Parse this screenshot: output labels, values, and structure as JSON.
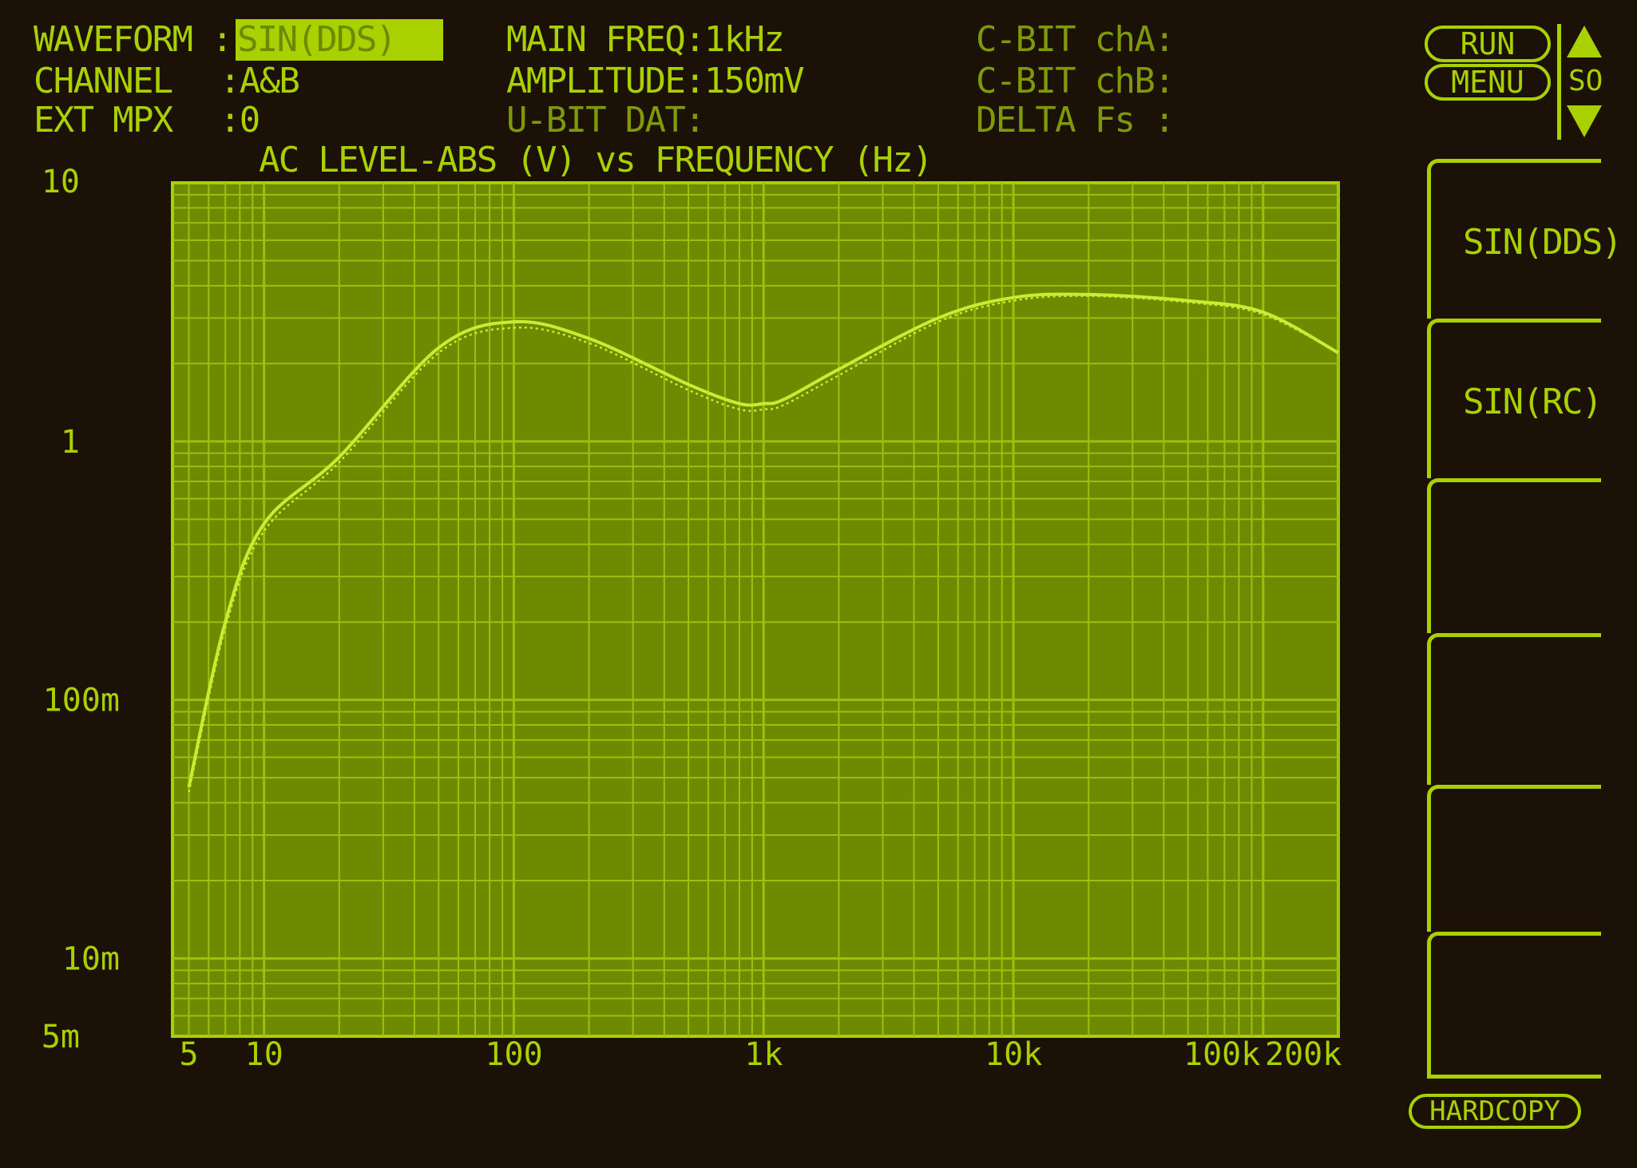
{
  "status": {
    "waveform_label": "WAVEFORM :",
    "waveform_value": "SIN(DDS)",
    "channel_label": "CHANNEL",
    "channel_value": ":A&B",
    "ext_mpx_label": "EXT MPX",
    "ext_mpx_value": ":0",
    "main_freq": "MAIN FREQ:1kHz",
    "amplitude": "AMPLITUDE:150mV",
    "u_bit": "U-BIT DAT:",
    "cbit_a": "C-BIT chA:",
    "cbit_b": "C-BIT chB:",
    "delta_fs": "DELTA Fs :"
  },
  "controls": {
    "run": "RUN",
    "menu": "MENU",
    "so": "SO",
    "hardcopy": "HARDCOPY",
    "softkeys": [
      "SIN(DDS)",
      "SIN(RC)",
      "",
      "",
      "",
      ""
    ]
  },
  "colors": {
    "background": "#1c1107",
    "phosphor": "#a9d000",
    "plot_fill": "#6e8a00",
    "grid": "#9cc010"
  },
  "chart_data": {
    "type": "line",
    "title": "AC LEVEL-ABS (V) vs FREQUENCY (Hz)",
    "x_scale": "log",
    "y_scale": "log",
    "xlim": [
      4.3,
      200000
    ],
    "ylim": [
      0.005,
      10
    ],
    "grid": true,
    "x_ticks": [
      {
        "v": 5,
        "label": "5"
      },
      {
        "v": 10,
        "label": "10"
      },
      {
        "v": 100,
        "label": "100"
      },
      {
        "v": 1000,
        "label": "1k"
      },
      {
        "v": 10000,
        "label": "10k"
      },
      {
        "v": 100000,
        "label": "100k"
      },
      {
        "v": 200000,
        "label": "200k"
      }
    ],
    "y_ticks": [
      {
        "v": 10,
        "label": "10"
      },
      {
        "v": 1,
        "label": "1"
      },
      {
        "v": 0.1,
        "label": "100m"
      },
      {
        "v": 0.01,
        "label": "10m"
      },
      {
        "v": 0.005,
        "label": "5m"
      }
    ],
    "x": [
      5,
      7,
      10,
      20,
      50,
      100,
      200,
      500,
      800,
      1000,
      1200,
      2000,
      5000,
      10000,
      20000,
      50000,
      100000,
      200000
    ],
    "series": [
      {
        "values": [
          0.046,
          0.2,
          0.48,
          0.87,
          2.3,
          2.9,
          2.5,
          1.66,
          1.4,
          1.4,
          1.45,
          1.9,
          3.0,
          3.6,
          3.7,
          3.5,
          3.16,
          2.2
        ]
      },
      {
        "values": [
          0.044,
          0.19,
          0.45,
          0.83,
          2.2,
          2.75,
          2.4,
          1.58,
          1.33,
          1.33,
          1.38,
          1.8,
          2.9,
          3.5,
          3.65,
          3.45,
          3.1,
          2.2
        ]
      }
    ]
  }
}
